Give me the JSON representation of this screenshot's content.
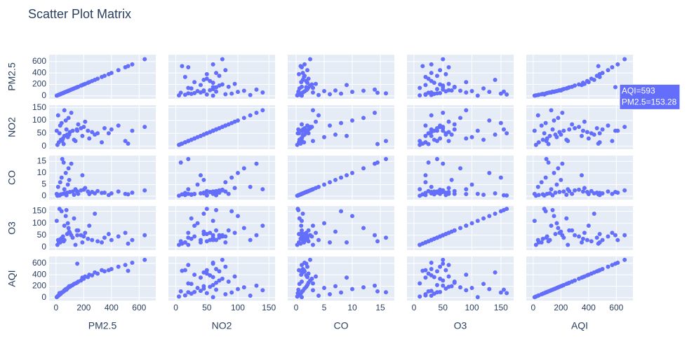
{
  "chart_data": {
    "type": "splom",
    "title": "Scatter Plot Matrix",
    "color": "#636efa",
    "grid": true,
    "dimensions": [
      {
        "label": "PM2.5",
        "lim": [
          -50,
          720
        ],
        "ticks": [
          0,
          200,
          400,
          600
        ],
        "values": [
          20,
          35,
          50,
          60,
          80,
          100,
          120,
          150,
          180,
          200,
          230,
          260,
          300,
          350,
          400,
          450,
          500,
          550,
          640,
          10,
          30,
          40,
          70,
          90,
          110,
          60,
          25,
          45,
          85,
          130,
          160,
          190,
          210,
          240,
          280,
          330,
          520,
          380,
          153.28,
          15,
          5,
          55,
          75,
          95,
          140
        ]
      },
      {
        "label": "NO2",
        "lim": [
          -12,
          160
        ],
        "ticks": [
          0,
          50,
          100,
          150
        ],
        "values": [
          15,
          25,
          30,
          40,
          45,
          55,
          60,
          65,
          70,
          75,
          60,
          55,
          50,
          70,
          65,
          80,
          20,
          60,
          75,
          5,
          80,
          90,
          100,
          110,
          130,
          140,
          50,
          20,
          35,
          25,
          85,
          40,
          95,
          30,
          45,
          15,
          10,
          50,
          60,
          120,
          60,
          8,
          65,
          45,
          20
        ]
      },
      {
        "label": "CO",
        "lim": [
          -1.5,
          17.5
        ],
        "ticks": [
          0,
          5,
          10,
          15
        ],
        "values": [
          0.5,
          0.8,
          1.0,
          1.2,
          1.5,
          1.8,
          2.0,
          2.2,
          2.5,
          2.8,
          2.0,
          1.8,
          2.2,
          1.5,
          1.2,
          2.0,
          1.0,
          1.5,
          2.5,
          0.2,
          6.0,
          8.0,
          10.0,
          12.0,
          14.0,
          3.0,
          0.3,
          16.0,
          5.0,
          0.6,
          1.0,
          9.0,
          3.5,
          0.9,
          1.2,
          1.4,
          0.8,
          0.5,
          1.8,
          4.0,
          1.0,
          14.5,
          0.4,
          7.0,
          3.0
        ]
      },
      {
        "label": "O3",
        "lim": [
          -12,
          172
        ],
        "ticks": [
          0,
          50,
          100,
          150
        ],
        "values": [
          20,
          35,
          45,
          30,
          55,
          60,
          40,
          70,
          50,
          45,
          35,
          30,
          25,
          40,
          30,
          45,
          60,
          30,
          50,
          10,
          20,
          150,
          130,
          80,
          50,
          90,
          160,
          40,
          100,
          120,
          70,
          20,
          60,
          90,
          140,
          20,
          15,
          55,
          50,
          30,
          110,
          25,
          155,
          65,
          10
        ]
      },
      {
        "label": "AQI",
        "lim": [
          -50,
          720
        ],
        "ticks": [
          0,
          200,
          400,
          600
        ],
        "values": [
          40,
          70,
          100,
          120,
          160,
          190,
          220,
          260,
          300,
          330,
          360,
          390,
          420,
          460,
          500,
          540,
          570,
          610,
          660,
          20,
          60,
          90,
          150,
          180,
          210,
          130,
          80,
          95,
          170,
          240,
          280,
          350,
          370,
          400,
          440,
          480,
          470,
          480,
          593,
          35,
          10,
          110,
          140,
          200,
          250
        ]
      }
    ],
    "hover": {
      "point": 38,
      "lines": [
        "AQI=593",
        "PM2.5=153.28"
      ]
    }
  }
}
